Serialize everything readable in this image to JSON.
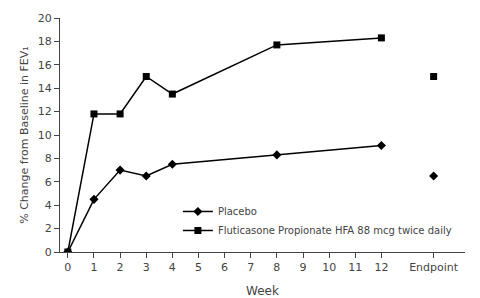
{
  "chart_data": {
    "type": "line",
    "xlabel": "Week",
    "ylabel": "% Change from Baseline in FEV₁",
    "series": [
      {
        "name": "Placebo",
        "x": [
          0,
          1,
          2,
          3,
          4,
          8,
          12
        ],
        "values": [
          0,
          4.5,
          7.0,
          6.5,
          7.5,
          8.3,
          9.1
        ],
        "color": "#000000",
        "marker": "diamond",
        "line_style": "solid"
      },
      {
        "name": "Fluticasone Propionate HFA 88 mcg twice daily",
        "x": [
          0,
          1,
          2,
          3,
          4,
          8,
          12
        ],
        "values": [
          0,
          11.8,
          11.8,
          15.0,
          13.5,
          17.7,
          18.3
        ],
        "color": "#000000",
        "marker": "square",
        "line_style": "solid"
      },
      {
        "x": [
          14
        ],
        "values": [
          15.0
        ],
        "color": "#000000",
        "marker": "square",
        "line_style": "none"
      },
      {
        "x": [
          14
        ],
        "values": [
          6.5
        ],
        "color": "#000000",
        "marker": "diamond",
        "line_style": "none"
      }
    ],
    "xlim": [
      -0.3,
      15.2
    ],
    "xticks": [
      0,
      1,
      2,
      3,
      4,
      5,
      6,
      7,
      8,
      9,
      10,
      11,
      12,
      {
        "value": 14,
        "label": "Endpoint"
      }
    ],
    "ylim": [
      0,
      20
    ],
    "yticks": [
      0,
      2,
      4,
      6,
      8,
      10,
      12,
      14,
      16,
      18,
      20
    ],
    "grid": false,
    "legend": "lower right"
  }
}
